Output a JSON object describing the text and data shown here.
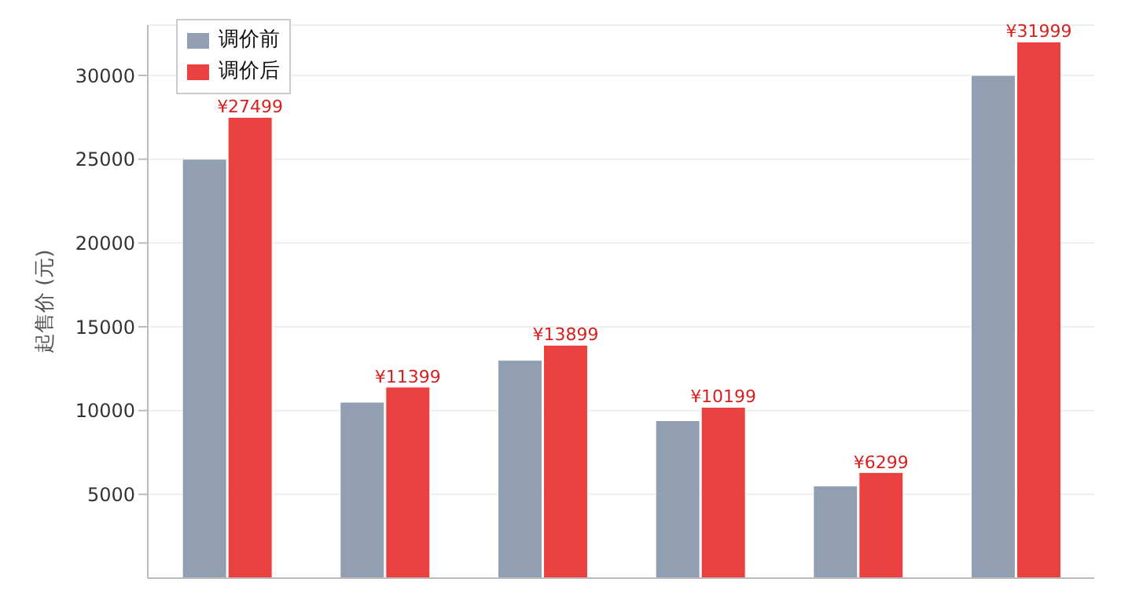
{
  "chart_data": {
    "type": "bar",
    "ylabel": "起售价 (元)",
    "categories": [
      null,
      null,
      null,
      null,
      null,
      null
    ],
    "series": [
      {
        "name": "调价前",
        "color": "#929fb3",
        "values": [
          25000,
          10500,
          13000,
          9400,
          5500,
          30000
        ]
      },
      {
        "name": "调价后",
        "color": "#e94040",
        "values": [
          27499,
          11399,
          13899,
          10199,
          6299,
          31999
        ],
        "value_labels": [
          "¥27499",
          "¥11399",
          "¥13899",
          "¥10199",
          "¥6299",
          "¥31999"
        ]
      }
    ],
    "ylim": [
      0,
      33000
    ],
    "yticks": [
      5000,
      10000,
      15000,
      20000,
      25000,
      30000
    ],
    "grid": "y",
    "legend": "top left",
    "tick_labels": "y"
  }
}
